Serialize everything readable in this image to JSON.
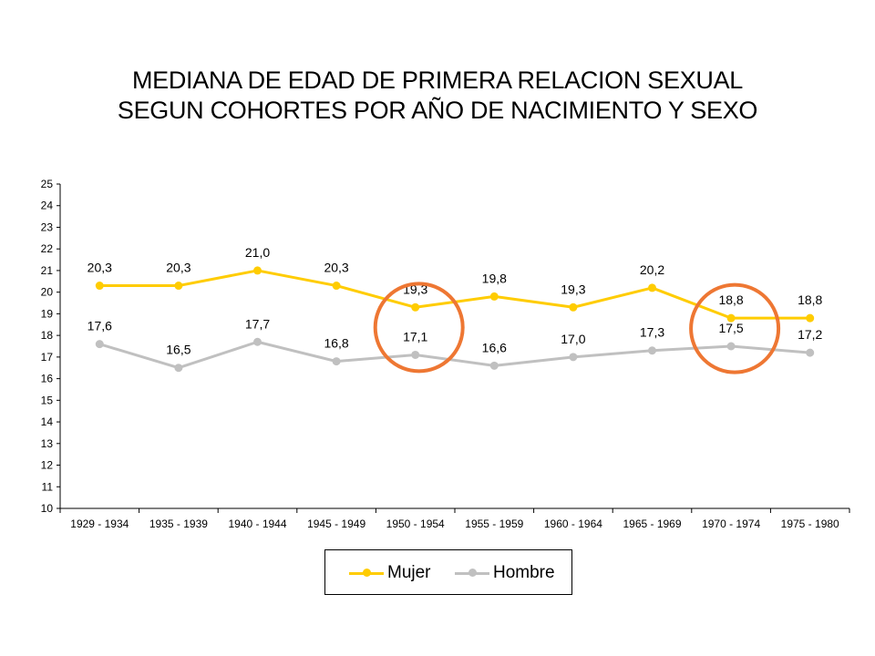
{
  "title_lines": [
    "MEDIANA DE EDAD DE PRIMERA RELACION SEXUAL",
    "SEGUN COHORTES POR AÑO DE NACIMIENTO Y SEXO"
  ],
  "chart_data": {
    "type": "line",
    "title": "MEDIANA DE EDAD DE PRIMERA RELACION SEXUAL SEGUN COHORTES POR AÑO DE NACIMIENTO Y SEXO",
    "xlabel": "",
    "ylabel": "",
    "ylim": [
      10,
      25
    ],
    "yticks": [
      "10",
      "11",
      "12",
      "13",
      "14",
      "15",
      "16",
      "17",
      "18",
      "19",
      "20",
      "21",
      "22",
      "23",
      "24",
      "25"
    ],
    "grid": false,
    "legend_position": "bottom",
    "categories": [
      "1929 - 1934",
      "1935 - 1939",
      "1940 - 1944",
      "1945 - 1949",
      "1950 - 1954",
      "1955 - 1959",
      "1960 - 1964",
      "1965 - 1969",
      "1970 - 1974",
      "1975 - 1980"
    ],
    "series": [
      {
        "name": "Mujer",
        "color": "#ffcc00",
        "values": [
          20.3,
          20.3,
          21.0,
          20.3,
          19.3,
          19.8,
          19.3,
          20.2,
          18.8,
          18.8
        ],
        "labels": [
          "20,3",
          "20,3",
          "21,0",
          "20,3",
          "19,3",
          "19,8",
          "19,3",
          "20,2",
          "18,8",
          "18,8"
        ]
      },
      {
        "name": "Hombre",
        "color": "#c0c0c0",
        "values": [
          17.6,
          16.5,
          17.7,
          16.8,
          17.1,
          16.6,
          17.0,
          17.3,
          17.5,
          17.2
        ],
        "labels": [
          "17,6",
          "16,5",
          "17,7",
          "16,8",
          "17,1",
          "16,6",
          "17,0",
          "17,3",
          "17,5",
          "17,2"
        ]
      }
    ],
    "annotations": [
      {
        "type": "circle",
        "category": "1950 - 1954",
        "color": "#ee7733"
      },
      {
        "type": "circle",
        "category": "1970 - 1974",
        "color": "#ee7733"
      }
    ]
  }
}
